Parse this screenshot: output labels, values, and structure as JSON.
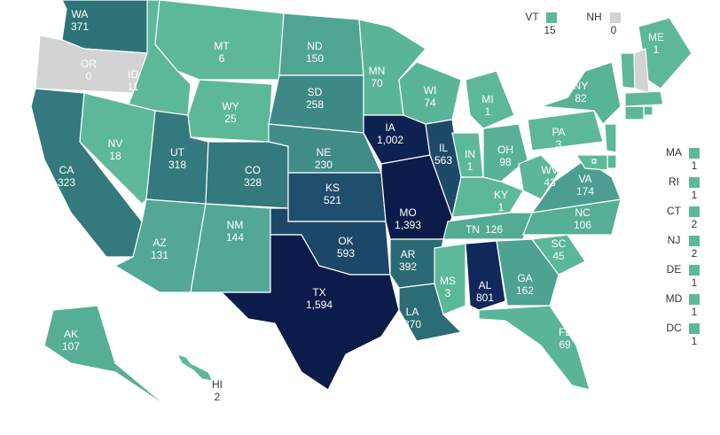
{
  "states": [
    {
      "abbr": "WA",
      "value": "371",
      "color": "#2e7378"
    },
    {
      "abbr": "OR",
      "value": "0",
      "color": "#d3d3d3"
    },
    {
      "abbr": "CA",
      "value": "323",
      "color": "#33797d"
    },
    {
      "abbr": "ID",
      "value": "11",
      "color": "#5db89a"
    },
    {
      "abbr": "NV",
      "value": "18",
      "color": "#5db89a"
    },
    {
      "abbr": "MT",
      "value": "6",
      "color": "#5db89a"
    },
    {
      "abbr": "WY",
      "value": "25",
      "color": "#5db89a"
    },
    {
      "abbr": "UT",
      "value": "318",
      "color": "#33797d"
    },
    {
      "abbr": "AZ",
      "value": "131",
      "color": "#52a894"
    },
    {
      "abbr": "CO",
      "value": "328",
      "color": "#33797d"
    },
    {
      "abbr": "NM",
      "value": "144",
      "color": "#52a894"
    },
    {
      "abbr": "ND",
      "value": "150",
      "color": "#4fa592"
    },
    {
      "abbr": "SD",
      "value": "258",
      "color": "#3e8986"
    },
    {
      "abbr": "NE",
      "value": "230",
      "color": "#408d88"
    },
    {
      "abbr": "KS",
      "value": "521",
      "color": "#1f4d6c"
    },
    {
      "abbr": "OK",
      "value": "593",
      "color": "#1d4768"
    },
    {
      "abbr": "TX",
      "value": "1,594",
      "color": "#0b1c4a"
    },
    {
      "abbr": "MN",
      "value": "70",
      "color": "#5ab498"
    },
    {
      "abbr": "IA",
      "value": "1,002",
      "color": "#0d2250"
    },
    {
      "abbr": "MO",
      "value": "1,393",
      "color": "#0b1c4a"
    },
    {
      "abbr": "AR",
      "value": "392",
      "color": "#2a6a74"
    },
    {
      "abbr": "LA",
      "value": "370",
      "color": "#2b6c75"
    },
    {
      "abbr": "WI",
      "value": "74",
      "color": "#5ab498"
    },
    {
      "abbr": "IL",
      "value": "563",
      "color": "#1e4a6a"
    },
    {
      "abbr": "MI",
      "value": "1",
      "color": "#5db89a"
    },
    {
      "abbr": "IN",
      "value": "1",
      "color": "#5db89a"
    },
    {
      "abbr": "OH",
      "value": "98",
      "color": "#58b197"
    },
    {
      "abbr": "KY",
      "value": "1",
      "color": "#5db89a"
    },
    {
      "abbr": "TN",
      "value": "126",
      "color": "#53aa95"
    },
    {
      "abbr": "MS",
      "value": "3",
      "color": "#5db89a"
    },
    {
      "abbr": "AL",
      "value": "801",
      "color": "#10285a"
    },
    {
      "abbr": "GA",
      "value": "162",
      "color": "#4da291"
    },
    {
      "abbr": "FL",
      "value": "69",
      "color": "#5ab498"
    },
    {
      "abbr": "SC",
      "value": "45",
      "color": "#5cb699"
    },
    {
      "abbr": "NC",
      "value": "106",
      "color": "#56ae96"
    },
    {
      "abbr": "VA",
      "value": "174",
      "color": "#4c9f90"
    },
    {
      "abbr": "WV",
      "value": "43",
      "color": "#5cb699"
    },
    {
      "abbr": "PA",
      "value": "3",
      "color": "#5db89a"
    },
    {
      "abbr": "NY",
      "value": "82",
      "color": "#59b397"
    },
    {
      "abbr": "ME",
      "value": "1",
      "color": "#5db89a"
    },
    {
      "abbr": "AK",
      "value": "107",
      "color": "#56ae96"
    },
    {
      "abbr": "HI",
      "value": "2",
      "color": "#5db89a"
    },
    {
      "abbr": "VT",
      "value": "15",
      "color": "#5db89a"
    },
    {
      "abbr": "NH",
      "value": "0",
      "color": "#d3d3d3"
    },
    {
      "abbr": "MA",
      "value": "1",
      "color": "#5db89a"
    },
    {
      "abbr": "RI",
      "value": "1",
      "color": "#5db89a"
    },
    {
      "abbr": "CT",
      "value": "2",
      "color": "#5db89a"
    },
    {
      "abbr": "NJ",
      "value": "2",
      "color": "#5db89a"
    },
    {
      "abbr": "DE",
      "value": "1",
      "color": "#5db89a"
    },
    {
      "abbr": "MD",
      "value": "1",
      "color": "#5db89a"
    },
    {
      "abbr": "DC",
      "value": "1",
      "color": "#5db89a"
    }
  ]
}
